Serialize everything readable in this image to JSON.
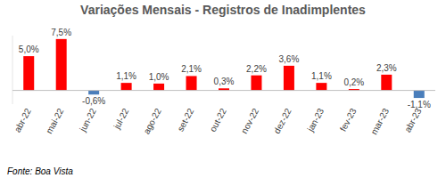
{
  "chart_data": {
    "type": "bar",
    "title": "Variações Mensais - Registros de Inadimplentes",
    "source": "Fonte: Boa Vista",
    "categories": [
      "abr-22",
      "mai-22",
      "jun-22",
      "jul-22",
      "ago-22",
      "set-22",
      "out-22",
      "nov-22",
      "dez-22",
      "jan-23",
      "fev-23",
      "mar-23",
      "abr-23"
    ],
    "values": [
      5.0,
      7.5,
      -0.6,
      1.1,
      1.0,
      2.1,
      0.3,
      2.2,
      3.6,
      1.1,
      0.2,
      2.3,
      -1.1
    ],
    "value_labels": [
      "5,0%",
      "7,5%",
      "-0,6%",
      "1,1%",
      "1,0%",
      "2,1%",
      "0,3%",
      "2,2%",
      "3,6%",
      "1,1%",
      "0,2%",
      "2,3%",
      "-1,1%"
    ],
    "colors": [
      "#ff0000",
      "#ff0000",
      "#4a7ebb",
      "#ff0000",
      "#ff0000",
      "#ff0000",
      "#ff0000",
      "#ff0000",
      "#ff0000",
      "#ff0000",
      "#ff0000",
      "#ff0000",
      "#4a7ebb"
    ],
    "ylim": [
      -2,
      8
    ],
    "yticks": [],
    "grid": false,
    "data_labels": true,
    "tick_labels": "x"
  }
}
